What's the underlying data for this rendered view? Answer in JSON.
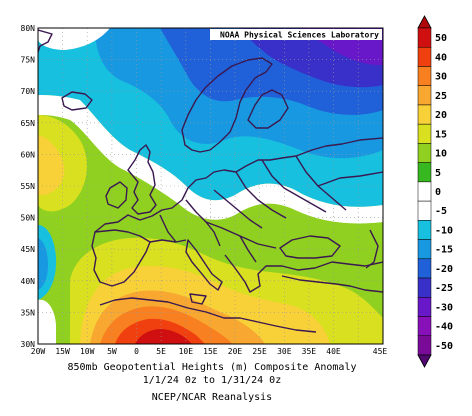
{
  "credit": "NOAA Physical Sciences Laboratory",
  "caption": {
    "line1": "850mb Geopotential Heights (m)   Composite Anomaly",
    "line2": "1/1/24 0z  to 1/31/24 0z",
    "line3": "NCEP/NCAR Reanalysis"
  },
  "lat_labels": [
    "80N",
    "75N",
    "70N",
    "65N",
    "60N",
    "55N",
    "50N",
    "45N",
    "40N",
    "35N",
    "30N"
  ],
  "lon_labels": [
    "20W",
    "15W",
    "10W",
    "5W",
    "0",
    "5E",
    "10E",
    "15E",
    "20E",
    "25E",
    "30E",
    "35E",
    "40E",
    "45E"
  ],
  "colorbar": {
    "levels": [
      {
        "label": "50",
        "color": "#d01010"
      },
      {
        "label": "40",
        "color": "#f04010"
      },
      {
        "label": "30",
        "color": "#f88020"
      },
      {
        "label": "25",
        "color": "#f8a830"
      },
      {
        "label": "20",
        "color": "#f8d038"
      },
      {
        "label": "15",
        "color": "#d8e020"
      },
      {
        "label": "10",
        "color": "#90d020"
      },
      {
        "label": "5",
        "color": "#38b820"
      },
      {
        "label": "0",
        "color": "#ffffff"
      },
      {
        "label": "-5",
        "color": "#ffffff"
      },
      {
        "label": "-10",
        "color": "#18c0e0"
      },
      {
        "label": "-15",
        "color": "#1898e0"
      },
      {
        "label": "-20",
        "color": "#2060d8"
      },
      {
        "label": "-25",
        "color": "#3830c8"
      },
      {
        "label": "-30",
        "color": "#6818c8"
      },
      {
        "label": "-40",
        "color": "#8810b8"
      },
      {
        "label": "-50",
        "color": "#7a0a98"
      }
    ],
    "top_cap_color": "#b00808",
    "bottom_cap_color": "#500870"
  }
}
